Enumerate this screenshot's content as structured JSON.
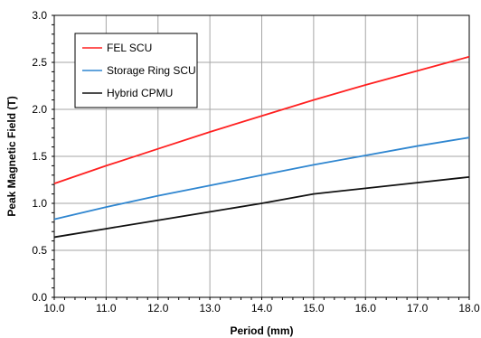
{
  "chart_data": {
    "type": "line",
    "title": "",
    "xlabel": "Period (mm)",
    "ylabel": "Peak Magnetic Field (T)",
    "xlim": [
      10.0,
      18.0
    ],
    "ylim": [
      0.0,
      3.0
    ],
    "x_ticks": [
      "10.0",
      "11.0",
      "12.0",
      "13.0",
      "14.0",
      "15.0",
      "16.0",
      "17.0",
      "18.0"
    ],
    "y_ticks": [
      "0.0",
      "0.5",
      "1.0",
      "1.5",
      "2.0",
      "2.5",
      "3.0"
    ],
    "grid": true,
    "legend_position": "top-left",
    "series": [
      {
        "name": "FEL SCU",
        "color": "#ff2020",
        "x": [
          10,
          11,
          12,
          13,
          14,
          15,
          16,
          17,
          18
        ],
        "y": [
          1.21,
          1.4,
          1.58,
          1.76,
          1.93,
          2.1,
          2.26,
          2.41,
          2.56
        ]
      },
      {
        "name": "Storage Ring SCU",
        "color": "#2f86d0",
        "x": [
          10,
          11,
          12,
          13,
          14,
          15,
          16,
          17,
          18
        ],
        "y": [
          0.83,
          0.96,
          1.08,
          1.19,
          1.3,
          1.41,
          1.51,
          1.61,
          1.7
        ]
      },
      {
        "name": "Hybrid CPMU",
        "color": "#111111",
        "x": [
          10,
          11,
          12,
          13,
          14,
          15,
          16,
          17,
          18
        ],
        "y": [
          0.64,
          0.73,
          0.82,
          0.91,
          1.0,
          1.1,
          1.16,
          1.22,
          1.28
        ]
      }
    ]
  }
}
